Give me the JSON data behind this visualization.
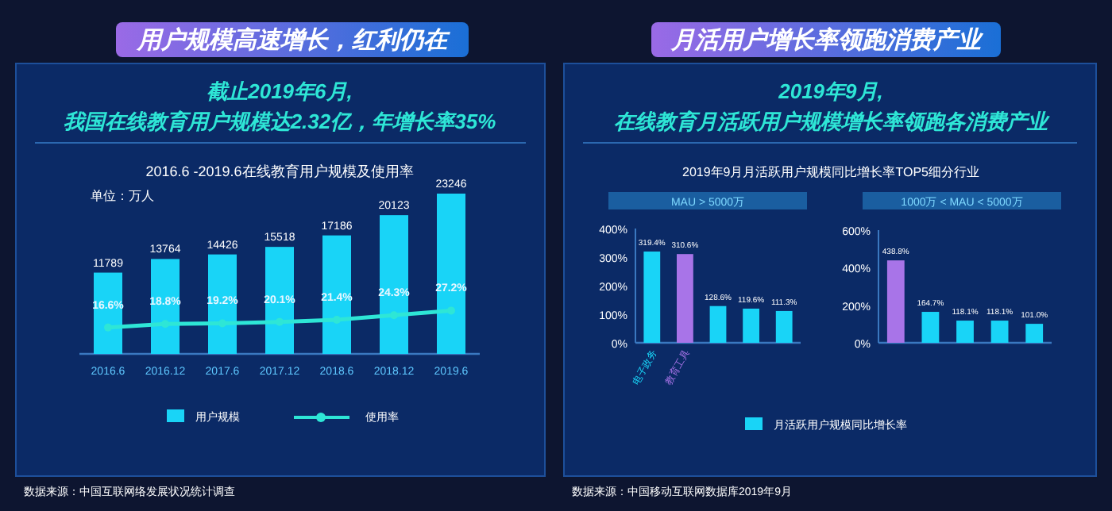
{
  "chart_data": [
    {
      "type": "bar",
      "title": "2016.6 -2019.6在线教育用户规模及使用率",
      "subtitle": "截止2019年6月,\n我国在线教育用户规模达2.32亿，年增长率35%",
      "annotations": [
        "用户规模高速增长，红利仍在",
        "单位：万人",
        "数据来源：中国互联网络发展状况统计调查"
      ],
      "categories": [
        "2016.6",
        "2016.12",
        "2017.6",
        "2017.12",
        "2018.6",
        "2018.12",
        "2019.6"
      ],
      "series": [
        {
          "name": "用户规模",
          "type": "bar",
          "color": "#19d4f7",
          "values": [
            11789,
            13764,
            14426,
            15518,
            17186,
            20123,
            23246
          ]
        },
        {
          "name": "使用率",
          "type": "line",
          "axis": "y2",
          "color": "#2ee6d6",
          "values": [
            16.6,
            18.8,
            19.2,
            20.1,
            21.4,
            24.3,
            27.2
          ],
          "value_labels": [
            "16.6%",
            "18.8%",
            "19.2%",
            "20.1%",
            "21.4%",
            "24.3%",
            "27.2%"
          ]
        }
      ],
      "data_labels": true,
      "marker": "circle",
      "legend": "bottom",
      "tick_labels": "x"
    },
    {
      "type": "bar",
      "title": "MAU > 5000万",
      "subtitle": "2019年9月,\n在线教育月活跃用户规模增长率领跑各消费产业",
      "annotations": [
        "月活用户增长率领跑消费产业",
        "2019年9月月活跃用户规模同比增长率TOP5细分行业",
        "数据来源：中国移动互联网数据库2019年9月"
      ],
      "categories": [
        "电子政务",
        "教育工具",
        null,
        null,
        null
      ],
      "series": [
        {
          "name": "月活跃用户规模同比增长率",
          "color": "#19d4f7",
          "colors": [
            "#19d4f7",
            "#a874e8",
            "#19d4f7",
            "#19d4f7",
            "#19d4f7"
          ],
          "values": [
            319.4,
            310.6,
            128.6,
            119.6,
            111.3
          ],
          "value_labels": [
            "319.4%",
            "310.6%",
            "128.6%",
            "119.6%",
            "111.3%"
          ]
        }
      ],
      "ylim": [
        0,
        400
      ],
      "yticks": [
        {
          "value": 0,
          "label": "0%"
        },
        {
          "value": 100,
          "label": "100%"
        },
        {
          "value": 200,
          "label": "200%"
        },
        {
          "value": 300,
          "label": "300%"
        },
        {
          "value": 400,
          "label": "400%"
        }
      ],
      "legend": "bottom"
    },
    {
      "type": "bar",
      "title": "1000万 < MAU < 5000万",
      "categories": [
        null,
        null,
        null,
        null,
        null
      ],
      "series": [
        {
          "colors": [
            "#a874e8",
            "#19d4f7",
            "#19d4f7",
            "#19d4f7",
            "#19d4f7"
          ],
          "values": [
            438.8,
            164.7,
            118.1,
            118.1,
            101.0
          ],
          "value_labels": [
            "438.8%",
            "164.7%",
            "118.1%",
            "118.1%",
            "101.0%"
          ]
        }
      ],
      "ylim": [
        0,
        600
      ],
      "yticks": [
        {
          "value": 0,
          "label": "0%"
        },
        {
          "value": 200,
          "label": "200%"
        },
        {
          "value": 400,
          "label": "400%"
        },
        {
          "value": 600,
          "label": "600%"
        }
      ]
    }
  ]
}
